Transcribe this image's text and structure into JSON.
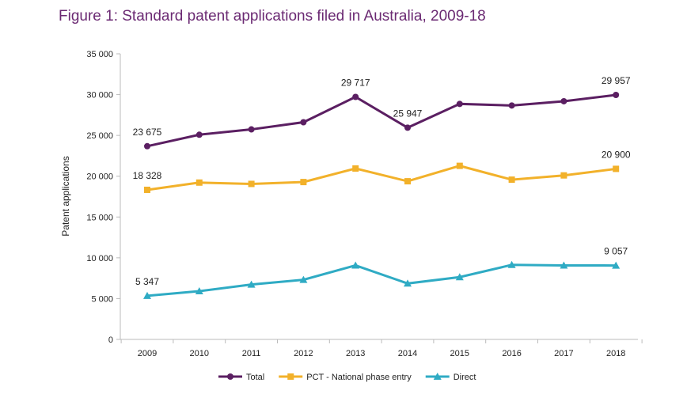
{
  "chart_data": {
    "type": "line",
    "title": "Figure 1: Standard patent applications filed in Australia, 2009-18",
    "xlabel": "",
    "ylabel": "Patent applications",
    "ylim": [
      0,
      35000
    ],
    "yticks": [
      0,
      5000,
      10000,
      15000,
      20000,
      25000,
      30000,
      35000
    ],
    "ytick_labels": [
      "0",
      "5 000",
      "10 000",
      "15 000",
      "20 000",
      "25 000",
      "30 000",
      "35 000"
    ],
    "categories": [
      "2009",
      "2010",
      "2011",
      "2012",
      "2013",
      "2014",
      "2015",
      "2016",
      "2017",
      "2018"
    ],
    "grid": false,
    "legend": "bottom",
    "series": [
      {
        "name": "Total",
        "color": "#5b1f62",
        "marker": "circle",
        "values": [
          23675,
          25085,
          25736,
          26615,
          29717,
          25947,
          28861,
          28665,
          29186,
          29957
        ],
        "labels": {
          "0": "23 675",
          "4": "29 717",
          "5": "25 947",
          "9": "29 957"
        }
      },
      {
        "name": "PCT - National phase entry",
        "color": "#f2b12a",
        "marker": "square",
        "values": [
          18328,
          19219,
          19056,
          19284,
          20944,
          19381,
          21270,
          19577,
          20098,
          20900
        ],
        "labels": {
          "0": "18 328",
          "9": "20 900"
        }
      },
      {
        "name": "Direct",
        "color": "#2fabc4",
        "marker": "triangle",
        "values": [
          5347,
          5911,
          6725,
          7311,
          9069,
          6855,
          7637,
          9134,
          9069,
          9057
        ],
        "labels": {
          "0": "5 347",
          "9": "9 057"
        }
      }
    ]
  }
}
